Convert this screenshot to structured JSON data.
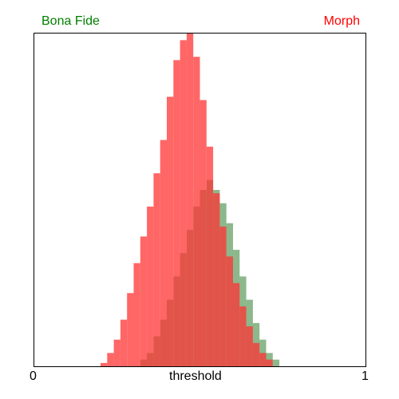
{
  "chart_data": {
    "type": "histogram",
    "title": "",
    "xlabel": "threshold",
    "ylabel": "",
    "xlim": [
      0,
      1
    ],
    "x_tick_labels": [
      "0",
      "1"
    ],
    "grid": false,
    "legend_placement": "top",
    "series": [
      {
        "name": "Bona Fide",
        "color": "#008000",
        "fill": "#2e7d2e",
        "opacity": 0.55,
        "bins": [
          [
            0.32,
            0.02
          ],
          [
            0.34,
            0.04
          ],
          [
            0.36,
            0.09
          ],
          [
            0.38,
            0.14
          ],
          [
            0.4,
            0.2
          ],
          [
            0.42,
            0.27
          ],
          [
            0.44,
            0.34
          ],
          [
            0.46,
            0.41
          ],
          [
            0.48,
            0.48
          ],
          [
            0.5,
            0.53
          ],
          [
            0.52,
            0.56
          ],
          [
            0.54,
            0.53
          ],
          [
            0.56,
            0.49
          ],
          [
            0.58,
            0.43
          ],
          [
            0.6,
            0.35
          ],
          [
            0.62,
            0.27
          ],
          [
            0.64,
            0.2
          ],
          [
            0.66,
            0.13
          ],
          [
            0.68,
            0.08
          ],
          [
            0.7,
            0.04
          ],
          [
            0.72,
            0.02
          ],
          [
            0.74,
            0.0
          ]
        ]
      },
      {
        "name": "Morph",
        "color": "#ff0000",
        "fill": "#ff3333",
        "opacity": 0.75,
        "bins": [
          [
            0.2,
            0.01
          ],
          [
            0.22,
            0.04
          ],
          [
            0.24,
            0.08
          ],
          [
            0.26,
            0.14
          ],
          [
            0.28,
            0.22
          ],
          [
            0.3,
            0.31
          ],
          [
            0.32,
            0.39
          ],
          [
            0.34,
            0.48
          ],
          [
            0.36,
            0.58
          ],
          [
            0.38,
            0.68
          ],
          [
            0.4,
            0.81
          ],
          [
            0.42,
            0.92
          ],
          [
            0.44,
            0.98
          ],
          [
            0.46,
            1.0
          ],
          [
            0.48,
            0.93
          ],
          [
            0.5,
            0.8
          ],
          [
            0.52,
            0.66
          ],
          [
            0.54,
            0.52
          ],
          [
            0.56,
            0.42
          ],
          [
            0.58,
            0.33
          ],
          [
            0.6,
            0.25
          ],
          [
            0.62,
            0.18
          ],
          [
            0.64,
            0.12
          ],
          [
            0.66,
            0.07
          ],
          [
            0.68,
            0.04
          ],
          [
            0.7,
            0.02
          ],
          [
            0.72,
            0.0
          ]
        ]
      }
    ]
  }
}
